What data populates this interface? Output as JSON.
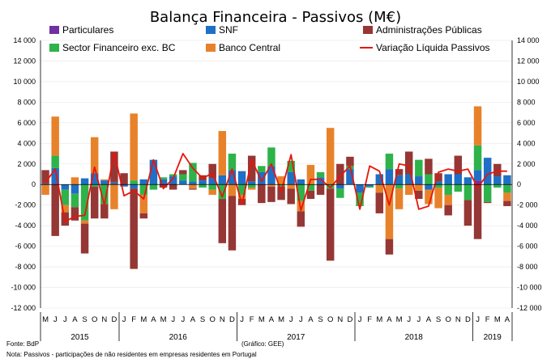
{
  "chart_data": {
    "type": "bar",
    "stacked": true,
    "title": "Balança Financeira - Passivos (M€)",
    "ylim": [
      -12000,
      14000
    ],
    "yticks": [
      14000,
      12000,
      10000,
      8000,
      6000,
      4000,
      2000,
      0,
      -2000,
      -4000,
      -6000,
      -8000,
      -10000,
      -12000
    ],
    "yticks_left_labels": [
      "14 000",
      "12 000",
      "10 000",
      "8 000",
      "6 000",
      "4 000",
      "2 000",
      "0",
      "-2 000",
      "-4 000",
      "-6 000",
      "-8 000",
      "-10 000",
      "-12 000"
    ],
    "yticks_right_labels": [
      "14 000",
      "12 000",
      "10 000",
      "8 000",
      "6 000",
      "4 000",
      "2 000",
      "0",
      "-2 000",
      "-4 000",
      "-6 000",
      "-8 000",
      "-10 000",
      "-12 000"
    ],
    "categories": [
      "M",
      "J",
      "J",
      "A",
      "S",
      "O",
      "N",
      "D",
      "J",
      "F",
      "M",
      "A",
      "M",
      "J",
      "J",
      "A",
      "S",
      "O",
      "N",
      "D",
      "J",
      "F",
      "M",
      "A",
      "M",
      "J",
      "J",
      "A",
      "S",
      "O",
      "N",
      "D",
      "J",
      "F",
      "M",
      "A",
      "M",
      "J",
      "J",
      "A",
      "S",
      "O",
      "N",
      "D",
      "J",
      "F",
      "M",
      "A"
    ],
    "year_labels": [
      {
        "label": "2015",
        "start": 0,
        "end": 7
      },
      {
        "label": "2016",
        "start": 8,
        "end": 19
      },
      {
        "label": "2017",
        "start": 20,
        "end": 31
      },
      {
        "label": "2018",
        "start": 32,
        "end": 43
      },
      {
        "label": "2019",
        "start": 44,
        "end": 47
      }
    ],
    "series": [
      {
        "name": "Particulares",
        "color": "#7030a0",
        "values": [
          0,
          0,
          0,
          0,
          0,
          0,
          0,
          0,
          0,
          0,
          0,
          0,
          0,
          0,
          0,
          0,
          0,
          0,
          0,
          0,
          0,
          0,
          0,
          0,
          0,
          0,
          0,
          0,
          0,
          0,
          0,
          0,
          0,
          0,
          0,
          0,
          0,
          0,
          0,
          0,
          0,
          0,
          0,
          0,
          400,
          0,
          0,
          0
        ]
      },
      {
        "name": "SNF",
        "color": "#1f6fc5",
        "values": [
          100,
          1600,
          -500,
          -900,
          600,
          1100,
          400,
          200,
          -200,
          -400,
          500,
          2400,
          500,
          800,
          400,
          300,
          400,
          600,
          900,
          1400,
          1300,
          300,
          1200,
          1800,
          0,
          1200,
          500,
          0,
          700,
          0,
          -400,
          1500,
          -800,
          -200,
          1000,
          1500,
          900,
          1000,
          800,
          -500,
          300,
          1000,
          1000,
          700,
          1000,
          2600,
          800,
          900
        ]
      },
      {
        "name": "Sector Financeiro exc. BC",
        "color": "#2db34a",
        "values": [
          0,
          1200,
          -1500,
          -1300,
          -3500,
          -200,
          -1900,
          0,
          0,
          400,
          -1000,
          -500,
          200,
          200,
          600,
          1800,
          -300,
          -500,
          -1400,
          1600,
          -1000,
          -300,
          600,
          1800,
          -200,
          1100,
          -1600,
          -600,
          500,
          -400,
          -900,
          300,
          -1300,
          -100,
          0,
          1500,
          -400,
          0,
          1600,
          1000,
          -300,
          -1000,
          -700,
          -1500,
          2400,
          -1700,
          -300,
          -800
        ]
      },
      {
        "name": "Banco Central",
        "color": "#e8822a",
        "values": [
          -1000,
          3800,
          -700,
          700,
          -300,
          3500,
          100,
          -2400,
          0,
          6500,
          -1800,
          0,
          0,
          0,
          0,
          -400,
          0,
          -500,
          4300,
          -1100,
          -400,
          -200,
          0,
          -200,
          800,
          -400,
          -1000,
          1900,
          0,
          5500,
          0,
          0,
          0,
          0,
          -800,
          -5300,
          -2000,
          -1000,
          -600,
          -1400,
          -2000,
          -1000,
          0,
          0,
          3800,
          0,
          0,
          -800
        ]
      },
      {
        "name": "Administrações Públicas",
        "color": "#953735",
        "values": [
          1300,
          -5000,
          -1300,
          -1300,
          -2900,
          -3100,
          -1400,
          3000,
          1100,
          -7800,
          -500,
          0,
          -300,
          -500,
          400,
          -100,
          500,
          1400,
          -4300,
          -5300,
          -600,
          2500,
          -1800,
          -1500,
          -1300,
          -1500,
          -1500,
          -800,
          -1000,
          -7000,
          2000,
          900,
          0,
          0,
          -2000,
          -1500,
          600,
          2200,
          -800,
          1500,
          800,
          -1000,
          1800,
          -2500,
          -5300,
          -100,
          1200,
          -500
        ]
      }
    ],
    "line": {
      "name": "Variação Líquida Passivos",
      "color": "#e8150b",
      "values": [
        200,
        1500,
        -3600,
        -3100,
        -3000,
        1700,
        -2000,
        3100,
        -1100,
        -600,
        -1400,
        2400,
        -400,
        600,
        3000,
        1600,
        600,
        1100,
        -1200,
        1500,
        -1900,
        2400,
        300,
        2000,
        -700,
        2900,
        -2500,
        500,
        500,
        -300,
        800,
        1800,
        -2400,
        1800,
        1300,
        -2000,
        2000,
        1800,
        -2400,
        -2100,
        1200,
        1500,
        1300,
        1500,
        -300,
        1000,
        1300,
        1300
      ]
    },
    "legend": {
      "position": "top",
      "entries": [
        "Particulares",
        "SNF",
        "Administrações Públicas",
        "Sector Financeiro exc. BC",
        "Banco Central",
        "Variação Líquida Passivos"
      ]
    },
    "notes": {
      "source": "Fonte: BdP",
      "credit": "(Gráfico: GEE)",
      "note": "Nota: Passivos - participações de não residentes em empresas residentes em Portugal"
    }
  }
}
